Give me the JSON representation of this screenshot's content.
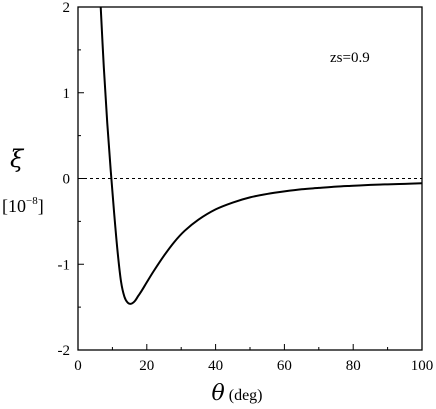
{
  "chart_data": {
    "type": "line",
    "title": "",
    "xlabel": {
      "symbol": "θ",
      "unit": "(deg)"
    },
    "ylabel": {
      "symbol": "ξ",
      "unit_prefix": "[10",
      "unit_exp": "−8",
      "unit_suffix": "]"
    },
    "xlim": [
      0,
      100
    ],
    "ylim": [
      -2,
      2
    ],
    "xticks": [
      0,
      20,
      40,
      60,
      80,
      100
    ],
    "xtick_labels": [
      "0",
      "20",
      "40",
      "60",
      "80",
      "100"
    ],
    "yticks": [
      -2,
      -1,
      0,
      1,
      2
    ],
    "ytick_labels": [
      "-2",
      "-1",
      "0",
      "1",
      "2"
    ],
    "grid": false,
    "annotation": "zs=0.9",
    "reference_line": {
      "y": 0,
      "style": "dotted"
    },
    "series": [
      {
        "x": [
          6.6,
          7.5,
          8.5,
          9.5,
          10.5,
          11.5,
          12.5,
          13.5,
          14.5,
          15.5,
          16.5,
          17.5,
          18.5,
          20,
          22,
          25,
          28,
          31,
          35,
          40,
          45,
          50,
          55,
          60,
          65,
          70,
          75,
          80,
          85,
          90,
          95,
          100
        ],
        "y": [
          2.0,
          1.3,
          0.65,
          0.1,
          -0.4,
          -0.85,
          -1.2,
          -1.38,
          -1.45,
          -1.46,
          -1.43,
          -1.37,
          -1.31,
          -1.21,
          -1.08,
          -0.9,
          -0.74,
          -0.61,
          -0.48,
          -0.36,
          -0.28,
          -0.22,
          -0.18,
          -0.15,
          -0.125,
          -0.11,
          -0.095,
          -0.085,
          -0.075,
          -0.068,
          -0.062,
          -0.056
        ]
      }
    ]
  }
}
